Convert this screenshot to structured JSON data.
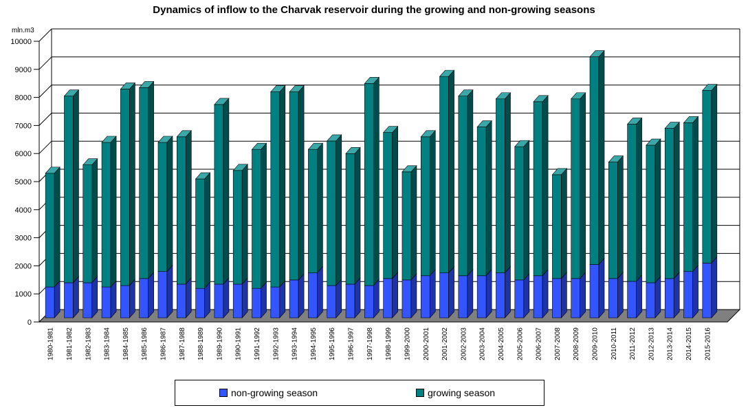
{
  "chart_data": {
    "type": "bar",
    "stacked": true,
    "three_d": true,
    "title": "Dynamics of inflow to the Charvak reservoir during the growing and non-growing seasons",
    "ylabel": "mln.m3",
    "xlabel": "",
    "ylim": [
      0,
      10000
    ],
    "yticks": [
      0,
      1000,
      2000,
      3000,
      4000,
      5000,
      6000,
      7000,
      8000,
      9000,
      10000
    ],
    "grid": true,
    "legend_position": "bottom",
    "categories": [
      "1980-1981",
      "1981-1982",
      "1982-1983",
      "1983-1984",
      "1984-1985",
      "1985-1986",
      "1986-1987",
      "1987-1988",
      "1988-1989",
      "1989-1990",
      "1990-1991",
      "1991-1992",
      "1992-1993",
      "1993-1994",
      "1994-1995",
      "1995-1996",
      "1996-1997",
      "1997-1998",
      "1998-1999",
      "1999-2000",
      "2000-2001",
      "2001-2002",
      "2002-2003",
      "2003-2004",
      "2004-2005",
      "2005-2006",
      "2006-2007",
      "2007-2008",
      "2008-2009",
      "2009-2010",
      "2010-2011",
      "2011-2012",
      "2012-2013",
      "2013-2014",
      "2014-2015",
      "2015-2016"
    ],
    "series": [
      {
        "name": "non-growing season",
        "color": "#3355ff",
        "values": [
          1100,
          1250,
          1250,
          1100,
          1150,
          1400,
          1650,
          1200,
          1050,
          1200,
          1200,
          1050,
          1100,
          1350,
          1600,
          1150,
          1200,
          1150,
          1400,
          1350,
          1500,
          1600,
          1500,
          1500,
          1600,
          1350,
          1500,
          1400,
          1400,
          1900,
          1400,
          1300,
          1250,
          1400,
          1650,
          1950
        ]
      },
      {
        "name": "growing season",
        "color": "#008080",
        "values": [
          4050,
          6650,
          4200,
          5150,
          7000,
          6800,
          4600,
          5250,
          3900,
          6400,
          4050,
          4950,
          6950,
          6700,
          4400,
          5150,
          4650,
          7200,
          5200,
          3850,
          4950,
          7000,
          6400,
          5300,
          6200,
          4750,
          6200,
          3700,
          6400,
          7400,
          4150,
          5600,
          4900,
          5350,
          5300,
          6150
        ]
      }
    ],
    "legend": [
      "non-growing season",
      "growing season"
    ]
  },
  "colors": {
    "nongrow_front": "#3355ff",
    "nongrow_side": "#1e33a8",
    "nongrow_top": "#6e85ff",
    "grow_front": "#008080",
    "grow_side": "#004b4b",
    "grow_top": "#3aa8a8",
    "floor": "#808080",
    "floor_front": "#606060"
  }
}
